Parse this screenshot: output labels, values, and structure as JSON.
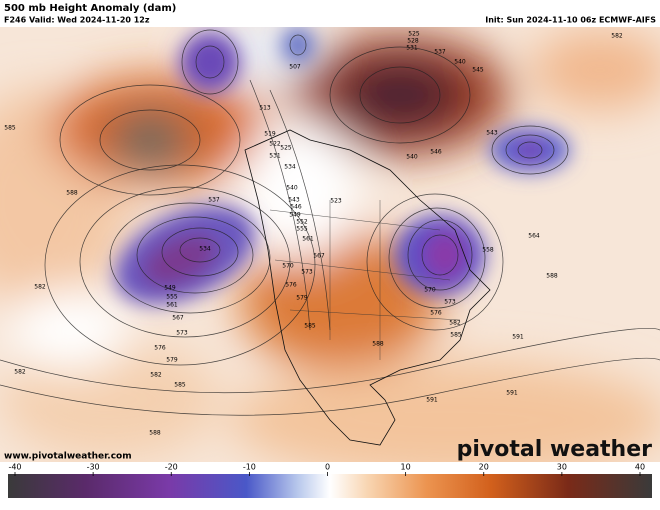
{
  "header": {
    "title": "500 mb Height Anomaly (dam)",
    "valid": "F246 Valid: Wed 2024-11-20 12z",
    "init": "Init: Sun 2024-11-10 06z ECMWF-AIFS"
  },
  "footer": {
    "website": "www.pivotalweather.com",
    "logo": "pivotal weather"
  },
  "colorbar": {
    "lim": [
      -40,
      40
    ],
    "ticks": [
      -40,
      -30,
      -20,
      -10,
      0,
      10,
      20,
      30,
      40
    ]
  },
  "contour_labels": [
    585,
    588,
    582,
    582,
    582,
    585,
    579,
    576,
    573,
    567,
    561,
    555,
    549,
    534,
    537,
    519,
    513,
    507,
    522,
    525,
    531,
    534,
    540,
    543,
    546,
    549,
    552,
    555,
    561,
    567,
    570,
    573,
    576,
    579,
    585,
    588,
    591,
    588,
    525,
    528,
    531,
    537,
    540,
    545,
    582,
    543,
    546,
    540,
    523,
    558,
    564,
    588,
    573,
    576,
    582,
    585,
    591,
    591,
    570
  ]
}
